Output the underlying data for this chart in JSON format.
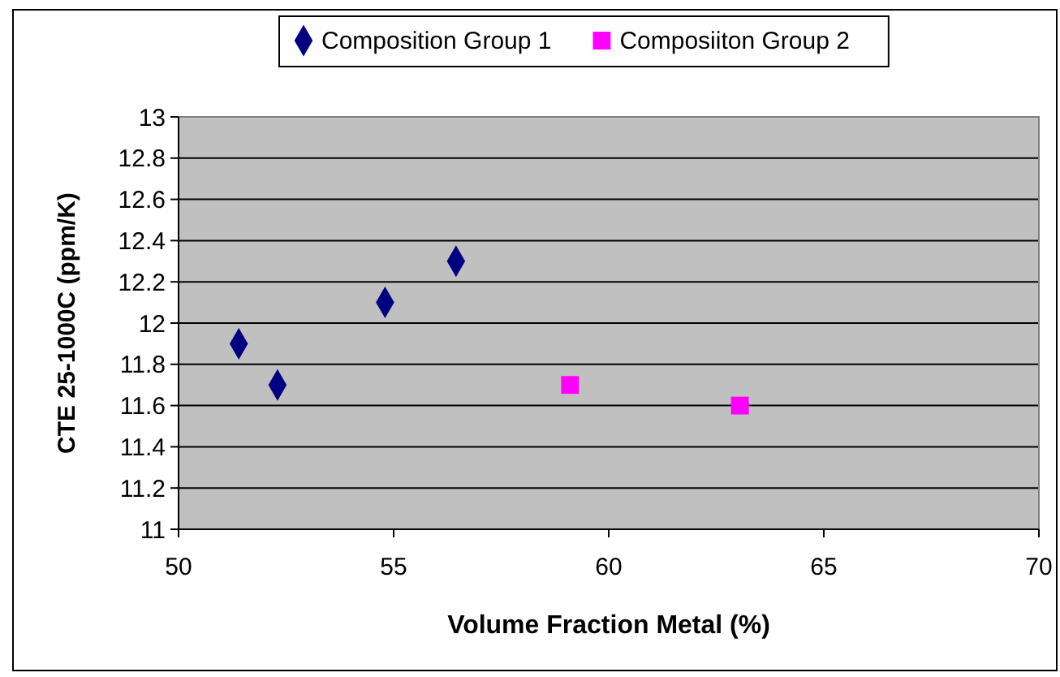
{
  "chart_data": {
    "type": "scatter",
    "xlabel": "Volume Fraction Metal (%)",
    "ylabel": "CTE 25-1000C (ppm/K)",
    "xlim": [
      50,
      70
    ],
    "xticks": [
      50,
      55,
      60,
      65,
      70
    ],
    "ylim": [
      11,
      13
    ],
    "yticks": [
      11,
      11.2,
      11.4,
      11.6,
      11.8,
      12,
      12.2,
      12.4,
      12.6,
      12.8,
      13
    ],
    "grid": "y",
    "legend": "top",
    "series": [
      {
        "name": "Composition Group 1",
        "color": "#000080",
        "marker": "diamond",
        "x": [
          51.4,
          52.3,
          54.8,
          56.45
        ],
        "values": [
          11.9,
          11.7,
          12.1,
          12.3
        ]
      },
      {
        "name": "Composiiton Group 2",
        "color": "#ff00ff",
        "marker": "square",
        "x": [
          59.1,
          63.05
        ],
        "values": [
          11.7,
          11.6
        ]
      }
    ]
  }
}
